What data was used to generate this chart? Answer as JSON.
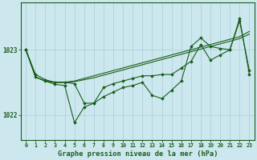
{
  "title": "Graphe pression niveau de la mer (hPa)",
  "bg_color": "#cce8ee",
  "grid_color": "#a8cdd6",
  "line_color": "#1a5c1a",
  "x_ticks": [
    0,
    1,
    2,
    3,
    4,
    5,
    6,
    7,
    8,
    9,
    10,
    11,
    12,
    13,
    14,
    15,
    16,
    17,
    18,
    19,
    20,
    21,
    22,
    23
  ],
  "y_ticks": [
    1022,
    1023
  ],
  "ylim": [
    1021.62,
    1023.72
  ],
  "xlim": [
    -0.5,
    23.5
  ],
  "y_jagged1": [
    1023.0,
    1022.58,
    1022.52,
    1022.47,
    1022.45,
    1021.88,
    1022.12,
    1022.18,
    1022.28,
    1022.35,
    1022.42,
    1022.45,
    1022.5,
    1022.3,
    1022.25,
    1022.38,
    1022.52,
    1023.05,
    1023.18,
    1023.05,
    1023.02,
    1023.0,
    1023.48,
    1022.62
  ],
  "y_jagged2": [
    1023.0,
    1022.62,
    1022.54,
    1022.5,
    1022.5,
    1022.48,
    1022.18,
    1022.18,
    1022.42,
    1022.48,
    1022.52,
    1022.56,
    1022.6,
    1022.6,
    1022.62,
    1022.62,
    1022.72,
    1022.82,
    1023.08,
    1022.84,
    1022.92,
    1023.0,
    1023.44,
    1022.68
  ],
  "y_trend1": [
    1023.0,
    1022.58,
    1022.52,
    1022.5,
    1022.5,
    1022.52,
    1022.56,
    1022.6,
    1022.64,
    1022.68,
    1022.72,
    1022.76,
    1022.8,
    1022.84,
    1022.88,
    1022.92,
    1022.96,
    1023.0,
    1023.04,
    1023.08,
    1023.12,
    1023.16,
    1023.2,
    1023.28
  ],
  "y_trend2": [
    1023.0,
    1022.58,
    1022.52,
    1022.5,
    1022.5,
    1022.51,
    1022.54,
    1022.57,
    1022.61,
    1022.65,
    1022.69,
    1022.73,
    1022.77,
    1022.81,
    1022.85,
    1022.89,
    1022.93,
    1022.97,
    1023.01,
    1023.05,
    1023.09,
    1023.13,
    1023.17,
    1023.24
  ]
}
